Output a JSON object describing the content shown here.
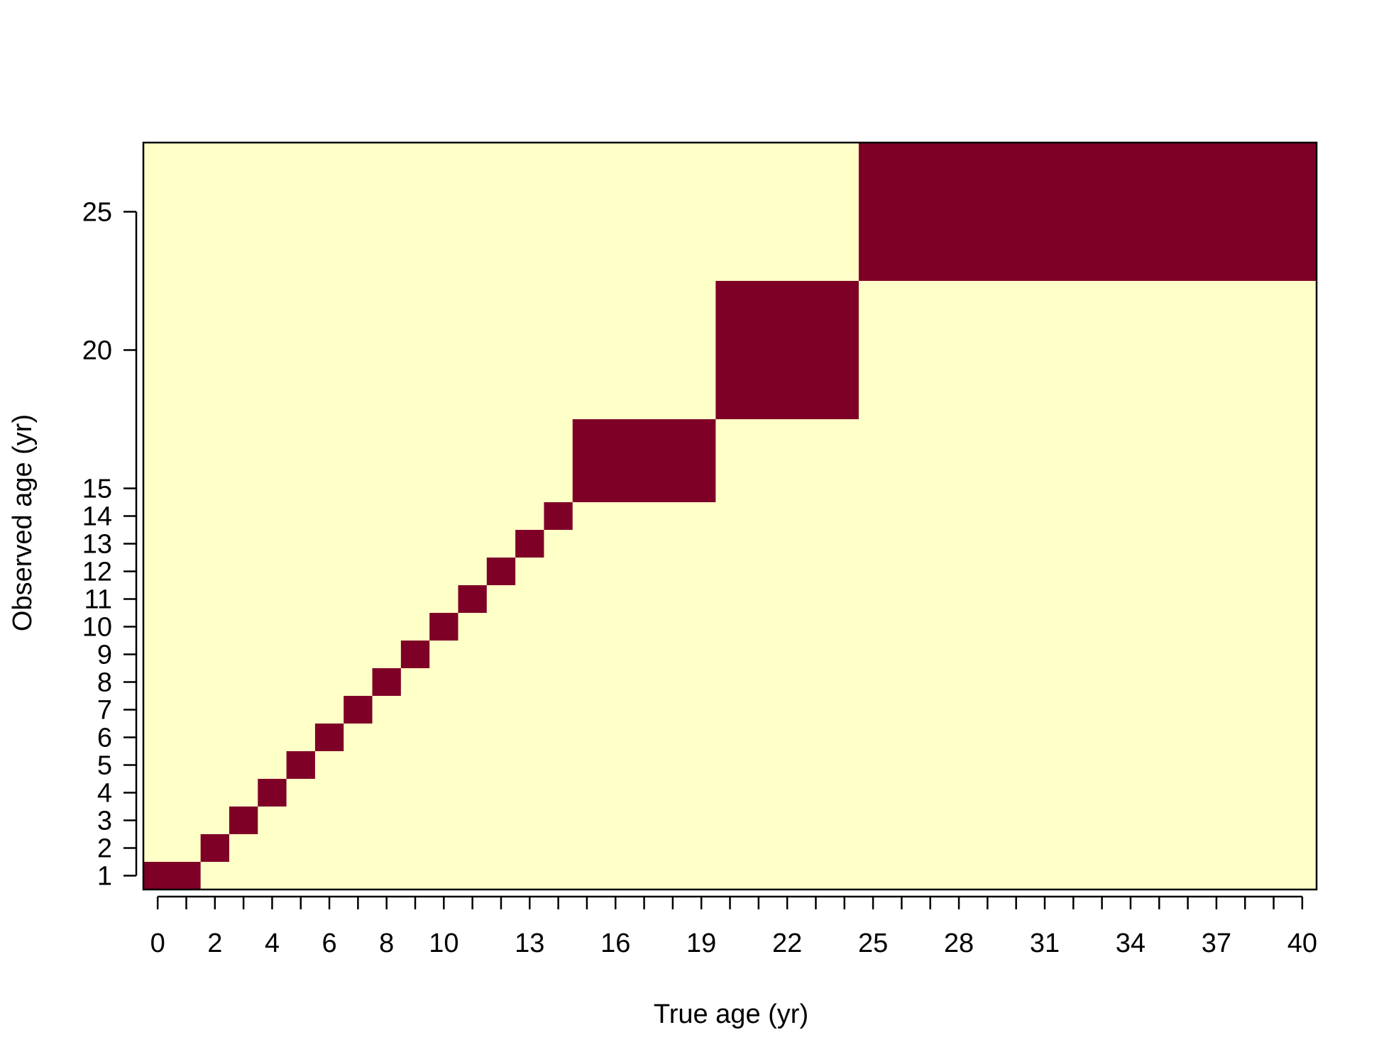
{
  "chart_data": {
    "type": "heatmap",
    "title": "",
    "xlabel": "True age (yr)",
    "ylabel": "Observed age (yr)",
    "x_tick_labels": [
      "0",
      "2",
      "4",
      "6",
      "8",
      "10",
      "13",
      "16",
      "19",
      "22",
      "25",
      "28",
      "31",
      "34",
      "37",
      "40"
    ],
    "y_tick_labels": [
      "1",
      "2",
      "3",
      "4",
      "5",
      "6",
      "7",
      "8",
      "9",
      "10",
      "11",
      "12",
      "13",
      "14",
      "15",
      "20",
      "25"
    ],
    "x_ticks": [
      0,
      1,
      2,
      3,
      4,
      5,
      6,
      7,
      8,
      9,
      10,
      11,
      12,
      13,
      14,
      15,
      16,
      17,
      18,
      19,
      20,
      21,
      22,
      23,
      24,
      25,
      26,
      27,
      28,
      29,
      30,
      31,
      32,
      33,
      34,
      35,
      36,
      37,
      38,
      39,
      40
    ],
    "xlim": [
      -0.5,
      40.5
    ],
    "ylim": [
      0.5,
      27.5
    ],
    "colors": {
      "low": "#FFFFC8",
      "high": "#7F0027"
    },
    "cells": [
      {
        "x": [
          -0.5,
          1.5
        ],
        "y": [
          0.5,
          1.5
        ]
      },
      {
        "x": [
          1.5,
          2.5
        ],
        "y": [
          1.5,
          2.5
        ]
      },
      {
        "x": [
          2.5,
          3.5
        ],
        "y": [
          2.5,
          3.5
        ]
      },
      {
        "x": [
          3.5,
          4.5
        ],
        "y": [
          3.5,
          4.5
        ]
      },
      {
        "x": [
          4.5,
          5.5
        ],
        "y": [
          4.5,
          5.5
        ]
      },
      {
        "x": [
          5.5,
          6.5
        ],
        "y": [
          5.5,
          6.5
        ]
      },
      {
        "x": [
          6.5,
          7.5
        ],
        "y": [
          6.5,
          7.5
        ]
      },
      {
        "x": [
          7.5,
          8.5
        ],
        "y": [
          7.5,
          8.5
        ]
      },
      {
        "x": [
          8.5,
          9.5
        ],
        "y": [
          8.5,
          9.5
        ]
      },
      {
        "x": [
          9.5,
          10.5
        ],
        "y": [
          9.5,
          10.5
        ]
      },
      {
        "x": [
          10.5,
          11.5
        ],
        "y": [
          10.5,
          11.5
        ]
      },
      {
        "x": [
          11.5,
          12.5
        ],
        "y": [
          11.5,
          12.5
        ]
      },
      {
        "x": [
          12.5,
          13.5
        ],
        "y": [
          12.5,
          13.5
        ]
      },
      {
        "x": [
          13.5,
          14.5
        ],
        "y": [
          13.5,
          14.5
        ]
      },
      {
        "x": [
          14.5,
          19.5
        ],
        "y": [
          14.5,
          17.5
        ]
      },
      {
        "x": [
          19.5,
          24.5
        ],
        "y": [
          17.5,
          22.5
        ]
      },
      {
        "x": [
          24.5,
          40.5
        ],
        "y": [
          22.5,
          27.5
        ]
      }
    ]
  }
}
